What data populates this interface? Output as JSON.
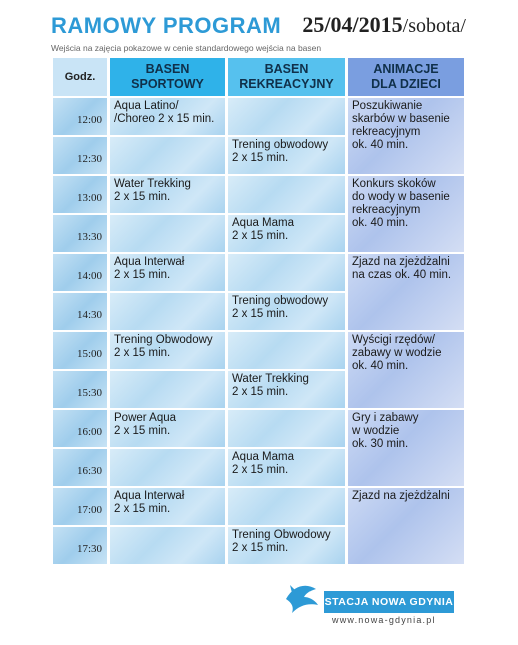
{
  "header": {
    "title": "RAMOWY PROGRAM",
    "date_main": "25/04/2015",
    "date_day": "/sobota/",
    "subtitle": "Wejścia na zajęcia pokazowe w cenie standardowego wejścia na basen"
  },
  "table": {
    "col_godz": "Godz.",
    "col_sportowy": "BASEN\nSPORTOWY",
    "col_rekreacyjny": "BASEN\nREKREACYJNY",
    "col_animacje": "ANIMACJE\nDLA DZIECI",
    "rows": [
      {
        "time": "12:00",
        "s": "Aqua Latino/\n/Choreo  2 x 15 min.",
        "r": ""
      },
      {
        "time": "12:30",
        "s": "",
        "r": "Trening obwodowy\n2 x 15 min."
      },
      {
        "time": "13:00",
        "s": "Water Trekking\n2 x 15 min.",
        "r": ""
      },
      {
        "time": "13:30",
        "s": "",
        "r": "Aqua Mama\n2 x 15 min."
      },
      {
        "time": "14:00",
        "s": "Aqua Interwał\n2 x 15 min.",
        "r": ""
      },
      {
        "time": "14:30",
        "s": "",
        "r": "Trening  obwodowy\n2 x 15 min."
      },
      {
        "time": "15:00",
        "s": "Trening Obwodowy\n2 x 15 min.",
        "r": ""
      },
      {
        "time": "15:30",
        "s": "",
        "r": "Water Trekking\n2 x 15 min."
      },
      {
        "time": "16:00",
        "s": "Power Aqua\n2 x 15 min.",
        "r": ""
      },
      {
        "time": "16:30",
        "s": "",
        "r": "Aqua Mama\n2 x 15 min."
      },
      {
        "time": "17:00",
        "s": "Aqua Interwał\n2 x 15 min.",
        "r": ""
      },
      {
        "time": "17:30",
        "s": "",
        "r": "Trening Obwodowy\n2 x 15 min."
      }
    ],
    "animacje": [
      "Poszukiwanie\nskarbów w basenie\nrekreacyjnym\nok. 40 min.",
      "Konkurs skoków\ndo wody w basenie\nrekreacyjnym\nok. 40 min.",
      "Zjazd na zjeżdżalni\nna czas ok. 40 min.",
      "Wyścigi rzędów/\nzabawy w wodzie\nok. 40 min.",
      "Gry i zabawy\nw wodzie\nok. 30 min.",
      "Zjazd na zjeżdżalni"
    ]
  },
  "footer": {
    "logo_text": "STACJA NOWA GDYNIA",
    "url": "www.nowa-gdynia.pl",
    "brand_color": "#2d9ad6"
  }
}
